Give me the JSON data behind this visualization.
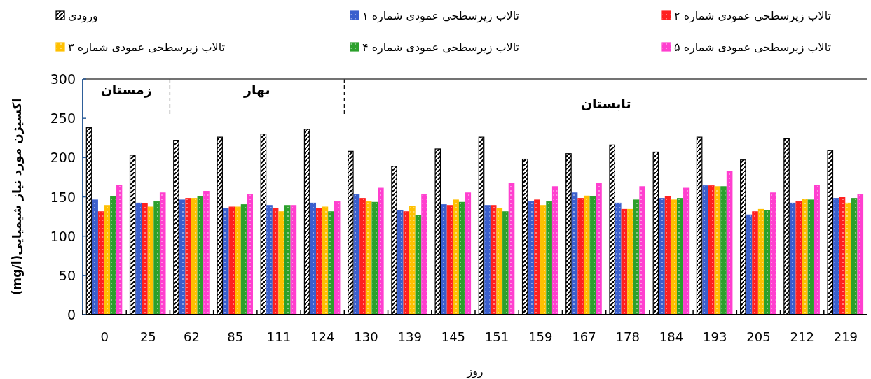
{
  "chart_data": {
    "type": "bar",
    "xlabel": "روز",
    "ylabel": "اکسیژن مورد نیاز شیمیایی(mg/l)",
    "categories": [
      "0",
      "25",
      "62",
      "85",
      "111",
      "124",
      "130",
      "139",
      "145",
      "151",
      "159",
      "167",
      "178",
      "184",
      "193",
      "205",
      "212",
      "219"
    ],
    "ylim": [
      0,
      300
    ],
    "yticks": [
      0,
      50,
      100,
      150,
      200,
      250,
      300
    ],
    "legend": "top",
    "annotations": [
      "زمستان",
      "بهار",
      "تابستان"
    ],
    "series": [
      {
        "name": "ورودی",
        "color": "#000000",
        "values": [
          238,
          203,
          222,
          226,
          230,
          236,
          208,
          189,
          211,
          226,
          198,
          205,
          216,
          207,
          226,
          197,
          224,
          209
        ]
      },
      {
        "name": "تالاب زیرسطحی عمودی شماره ۱",
        "color": "#3a5fcd",
        "values": [
          146,
          142,
          146,
          135,
          139,
          142,
          153,
          133,
          140,
          139,
          144,
          155,
          142,
          148,
          164,
          127,
          142,
          148
        ]
      },
      {
        "name": "تالاب زیرسطحی عمودی شماره ۲",
        "color": "#ff2020",
        "values": [
          131,
          141,
          148,
          137,
          135,
          135,
          148,
          131,
          139,
          139,
          146,
          148,
          134,
          150,
          164,
          131,
          144,
          149
        ]
      },
      {
        "name": "تالاب زیرسطحی عمودی شماره ۳",
        "color": "#ffc000",
        "values": [
          139,
          137,
          148,
          137,
          131,
          137,
          144,
          138,
          146,
          135,
          139,
          151,
          134,
          146,
          163,
          134,
          147,
          142
        ]
      },
      {
        "name": "تالاب زیرسطحی عمودی شماره ۴",
        "color": "#2ca02c",
        "values": [
          150,
          144,
          150,
          140,
          139,
          131,
          143,
          126,
          143,
          131,
          144,
          150,
          146,
          148,
          163,
          133,
          146,
          148
        ]
      },
      {
        "name": "تالاب زیرسطحی عمودی شماره ۵",
        "color": "#ff3fcf",
        "values": [
          165,
          155,
          157,
          153,
          139,
          144,
          161,
          153,
          155,
          167,
          163,
          167,
          163,
          161,
          182,
          155,
          165,
          153
        ]
      }
    ]
  }
}
